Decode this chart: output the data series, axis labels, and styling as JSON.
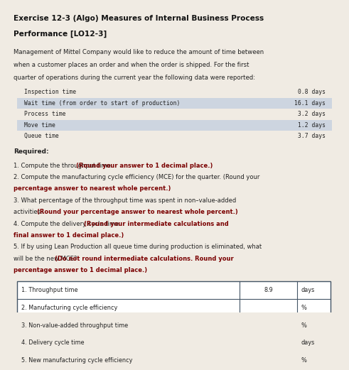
{
  "title_line1": "Exercise 12-3 (Algo) Measures of Internal Business Process",
  "title_line2": "Performance [LO12-3]",
  "para_lines": [
    "Management of Mittel Company would like to reduce the amount of time between",
    "when a customer places an order and when the order is shipped. For the first",
    "quarter of operations during the current year the following data were reported:"
  ],
  "data_items": [
    [
      "Inspection time",
      "0.8 days"
    ],
    [
      "Wait time (from order to start of production)",
      "16.1 days"
    ],
    [
      "Process time",
      "3.2 days"
    ],
    [
      "Move time",
      "1.2 days"
    ],
    [
      "Queue time",
      "3.7 days"
    ]
  ],
  "required_label": "Required:",
  "req_lines": [
    [
      [
        "1. Compute the throughput time. ",
        "normal"
      ],
      [
        "(Round your answer to 1 decimal place.)",
        "bold"
      ]
    ],
    [
      [
        "2. Compute the manufacturing cycle efficiency (MCE) for the quarter. (Round your",
        "normal"
      ]
    ],
    [
      [
        "percentage answer to nearest whole percent.)",
        "bold"
      ]
    ],
    [
      [
        "3. What percentage of the throughput time was spent in non–value-added",
        "normal"
      ]
    ],
    [
      [
        "activities? ",
        "normal"
      ],
      [
        "(Round your percentage answer to nearest whole percent.)",
        "bold"
      ]
    ],
    [
      [
        "4. Compute the delivery cycle time. ",
        "normal"
      ],
      [
        "(Round your intermediate calculations and",
        "bold"
      ]
    ],
    [
      [
        "final answer to 1 decimal place.)",
        "bold"
      ]
    ],
    [
      [
        "5. If by using Lean Production all queue time during production is eliminated, what",
        "normal"
      ]
    ],
    [
      [
        "will be the new MCE? ",
        "normal"
      ],
      [
        "(Do not round intermediate calculations. Round your",
        "bold"
      ]
    ],
    [
      [
        "percentage answer to 1 decimal place.)",
        "bold"
      ]
    ]
  ],
  "table_rows": [
    [
      "1. Throughput time",
      "8.9",
      "days"
    ],
    [
      "2. Manufacturing cycle efficiency",
      "",
      "%"
    ],
    [
      "3. Non-value-added throughput time",
      "",
      "%"
    ],
    [
      "4. Delivery cycle time",
      "",
      "days"
    ],
    [
      "5. New manufacturing cycle efficiency",
      "",
      "%"
    ]
  ],
  "bg_color": "#f0ebe3",
  "title_color": "#111111",
  "bold_color": "#7a0000",
  "normal_color": "#222222",
  "mono_color": "#222222",
  "table_border_color": "#445566",
  "row_highlight": "#cdd5e0"
}
